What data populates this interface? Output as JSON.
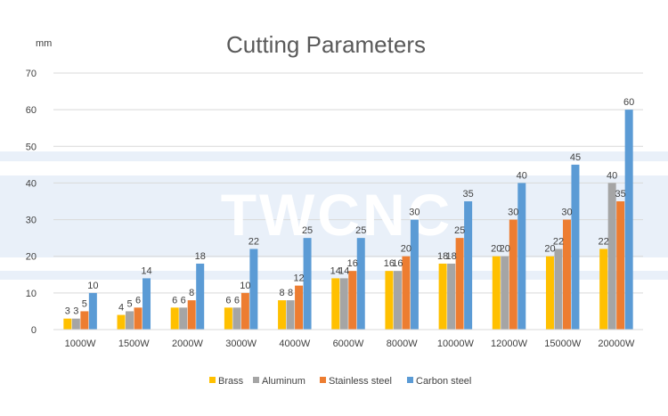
{
  "chart_data": {
    "type": "bar",
    "title": "Cutting Parameters",
    "unit_label": "mm",
    "watermark": "TWCNC",
    "categories": [
      "1000W",
      "1500W",
      "2000W",
      "3000W",
      "4000W",
      "6000W",
      "8000W",
      "10000W",
      "12000W",
      "15000W",
      "20000W"
    ],
    "ylim": [
      0,
      70
    ],
    "yticks": [
      0,
      10,
      20,
      30,
      40,
      50,
      60,
      70
    ],
    "series": [
      {
        "name": "Brass",
        "color": "#FFC000",
        "values": [
          3,
          4,
          6,
          6,
          8,
          14,
          16,
          18,
          20,
          20,
          22
        ]
      },
      {
        "name": "Aluminum",
        "color": "#A5A5A5",
        "values": [
          3,
          5,
          6,
          6,
          8,
          14,
          16,
          18,
          20,
          22,
          40
        ]
      },
      {
        "name": "Stainless steel",
        "color": "#ED7D31",
        "values": [
          5,
          6,
          8,
          10,
          12,
          16,
          20,
          25,
          30,
          30,
          35
        ]
      },
      {
        "name": "Carbon steel",
        "color": "#5B9BD5",
        "values": [
          10,
          14,
          18,
          22,
          25,
          25,
          30,
          35,
          40,
          45,
          60
        ]
      }
    ],
    "grid": true,
    "legend_position": "bottom"
  }
}
